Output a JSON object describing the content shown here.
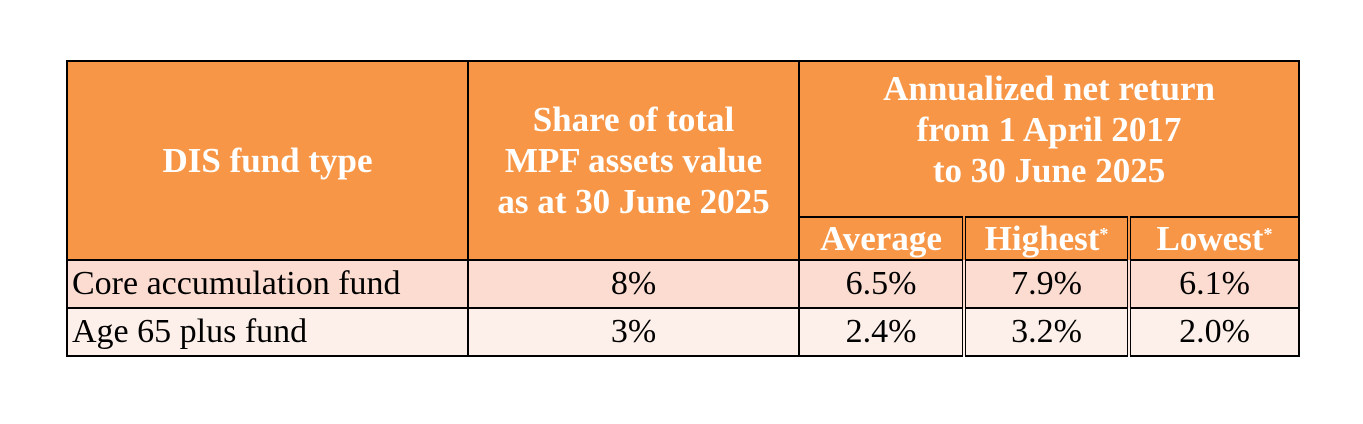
{
  "table": {
    "header": {
      "fund_type": "DIS fund type",
      "share_of_assets": [
        "Share of total",
        "MPF assets value",
        "as at 30 June 2025"
      ],
      "annualized_return": [
        "Annualized net return",
        "from 1 April 2017",
        "to 30 June 2025"
      ],
      "sub": {
        "average": "Average",
        "highest": "Highest",
        "lowest": "Lowest",
        "asterisk": "*"
      }
    },
    "rows": [
      {
        "fund": "Core accumulation fund",
        "share": "8%",
        "average": "6.5%",
        "highest": "7.9%",
        "lowest": "6.1%"
      },
      {
        "fund": "Age 65 plus fund",
        "share": "3%",
        "average": "2.4%",
        "highest": "3.2%",
        "lowest": "2.0%"
      }
    ],
    "colors": {
      "header_bg": "#f79646",
      "row1_bg": "#fcdcd0",
      "row2_bg": "#fdefe9",
      "border": "#000000"
    }
  }
}
